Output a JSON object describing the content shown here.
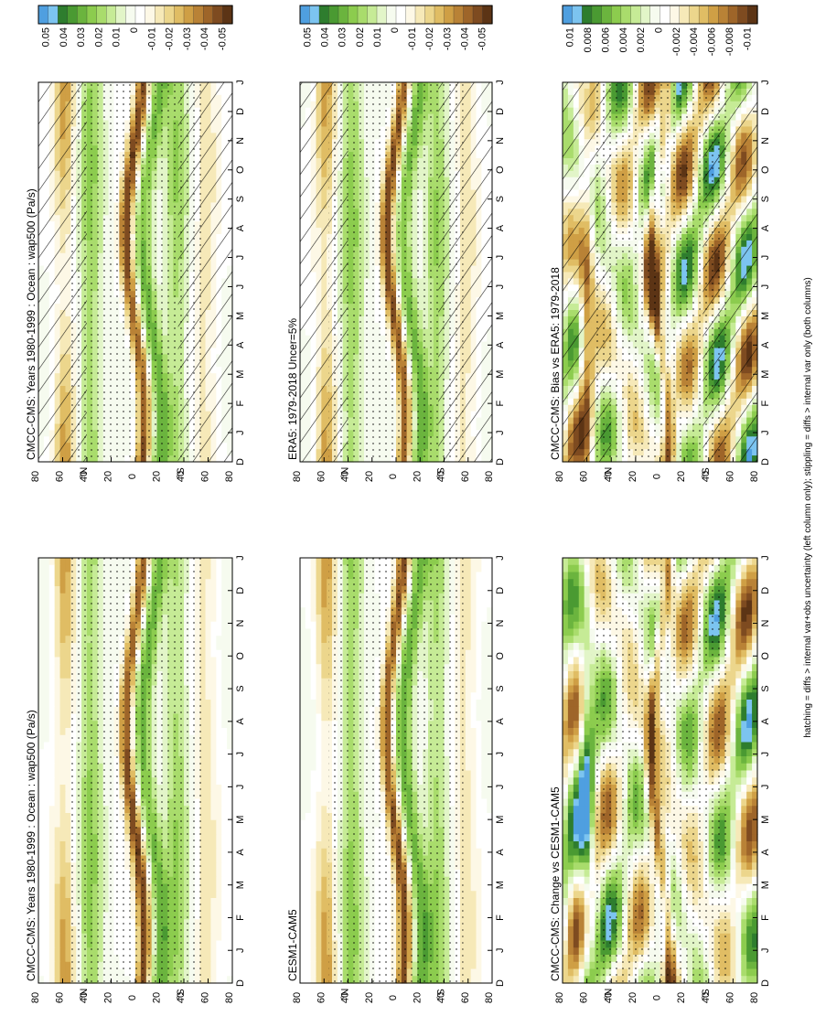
{
  "figure": {
    "footnote": "hatching = diffs > internal var+obs uncertainty (left column only); stippling = diffs > internal var only (both columns)"
  },
  "months": [
    "D",
    "J",
    "F",
    "M",
    "A",
    "M",
    "J",
    "J",
    "A",
    "S",
    "O",
    "N",
    "D",
    "J"
  ],
  "lat_ticks": [
    "80",
    "60",
    "40",
    "20",
    "0",
    "20",
    "40",
    "60",
    "80"
  ],
  "hemisphere_labels": {
    "north": "°N",
    "south": "°S"
  },
  "colorbars": [
    {
      "id": "main",
      "labels": [
        "0.05",
        "0.04",
        "0.03",
        "0.02",
        "0.01",
        "0",
        "-0.01",
        "-0.02",
        "-0.03",
        "-0.04",
        "-0.05"
      ],
      "colors": [
        "#4f9fe0",
        "#7cc4f0",
        "#2e7d2e",
        "#4a9a32",
        "#6bb43e",
        "#8ccc4e",
        "#a9dc6c",
        "#c6eb96",
        "#e2f5c8",
        "#f6fbef",
        "#ffffff",
        "#fdf8e6",
        "#f6e9b8",
        "#ecd68c",
        "#e0bd64",
        "#cf9f45",
        "#b98236",
        "#9e6529",
        "#7e4b20",
        "#5c3415"
      ]
    },
    {
      "id": "diff",
      "labels": [
        "0.01",
        "0.008",
        "0.006",
        "0.004",
        "0.002",
        "0",
        "-0.002",
        "-0.004",
        "-0.006",
        "-0.008",
        "-0.01"
      ],
      "colors": [
        "#4f9fe0",
        "#7cc4f0",
        "#2e7d2e",
        "#4a9a32",
        "#6bb43e",
        "#8ccc4e",
        "#a9dc6c",
        "#c6eb96",
        "#e2f5c8",
        "#f6fbef",
        "#ffffff",
        "#fdf8e6",
        "#f6e9b8",
        "#ecd68c",
        "#e0bd64",
        "#cf9f45",
        "#b98236",
        "#9e6529",
        "#7e4b20",
        "#5c3415"
      ]
    }
  ],
  "chart_data": [
    {
      "type": "heatmap",
      "title": "CMCC-CMS: Years 1980-1999 : Ocean : wap500 (Pa/s)",
      "x": [
        "D",
        "J",
        "F",
        "M",
        "A",
        "M",
        "J",
        "J",
        "A",
        "S",
        "O",
        "N",
        "D",
        "J"
      ],
      "y": [
        80,
        60,
        40,
        20,
        0,
        -20,
        -40,
        -60,
        -80
      ],
      "range": [
        -0.05,
        0.05
      ],
      "hatching": true,
      "stippling": true
    },
    {
      "type": "heatmap",
      "title": "ERA5: 1979-2018 Uncer=5%",
      "x": [
        "D",
        "J",
        "F",
        "M",
        "A",
        "M",
        "J",
        "J",
        "A",
        "S",
        "O",
        "N",
        "D",
        "J"
      ],
      "y": [
        80,
        60,
        40,
        20,
        0,
        -20,
        -40,
        -60,
        -80
      ],
      "range": [
        -0.05,
        0.05
      ],
      "hatching": true,
      "stippling": true
    },
    {
      "type": "heatmap",
      "title": "CMCC-CMS: Bias vs ERA5: 1979-2018",
      "x": [
        "D",
        "J",
        "F",
        "M",
        "A",
        "M",
        "J",
        "J",
        "A",
        "S",
        "O",
        "N",
        "D",
        "J"
      ],
      "y": [
        80,
        60,
        40,
        20,
        0,
        -20,
        -40,
        -60,
        -80
      ],
      "range": [
        -0.01,
        0.01
      ],
      "hatching": true,
      "stippling": true
    },
    {
      "type": "heatmap",
      "title": "CMCC-CMS: Years 1980-1999 : Ocean : wap500 (Pa/s)",
      "x": [
        "D",
        "J",
        "F",
        "M",
        "A",
        "M",
        "J",
        "J",
        "A",
        "S",
        "O",
        "N",
        "D",
        "J"
      ],
      "y": [
        80,
        60,
        40,
        20,
        0,
        -20,
        -40,
        -60,
        -80
      ],
      "range": [
        -0.05,
        0.05
      ],
      "hatching": false,
      "stippling": true
    },
    {
      "type": "heatmap",
      "title": "CESM1-CAM5",
      "x": [
        "D",
        "J",
        "F",
        "M",
        "A",
        "M",
        "J",
        "J",
        "A",
        "S",
        "O",
        "N",
        "D",
        "J"
      ],
      "y": [
        80,
        60,
        40,
        20,
        0,
        -20,
        -40,
        -60,
        -80
      ],
      "range": [
        -0.05,
        0.05
      ],
      "hatching": false,
      "stippling": true
    },
    {
      "type": "heatmap",
      "title": "CMCC-CMS: Change vs CESM1-CAM5",
      "x": [
        "D",
        "J",
        "F",
        "M",
        "A",
        "M",
        "J",
        "J",
        "A",
        "S",
        "O",
        "N",
        "D",
        "J"
      ],
      "y": [
        80,
        60,
        40,
        20,
        0,
        -20,
        -40,
        -60,
        -80
      ],
      "range": [
        -0.01,
        0.01
      ],
      "hatching": false,
      "stippling": true
    }
  ]
}
